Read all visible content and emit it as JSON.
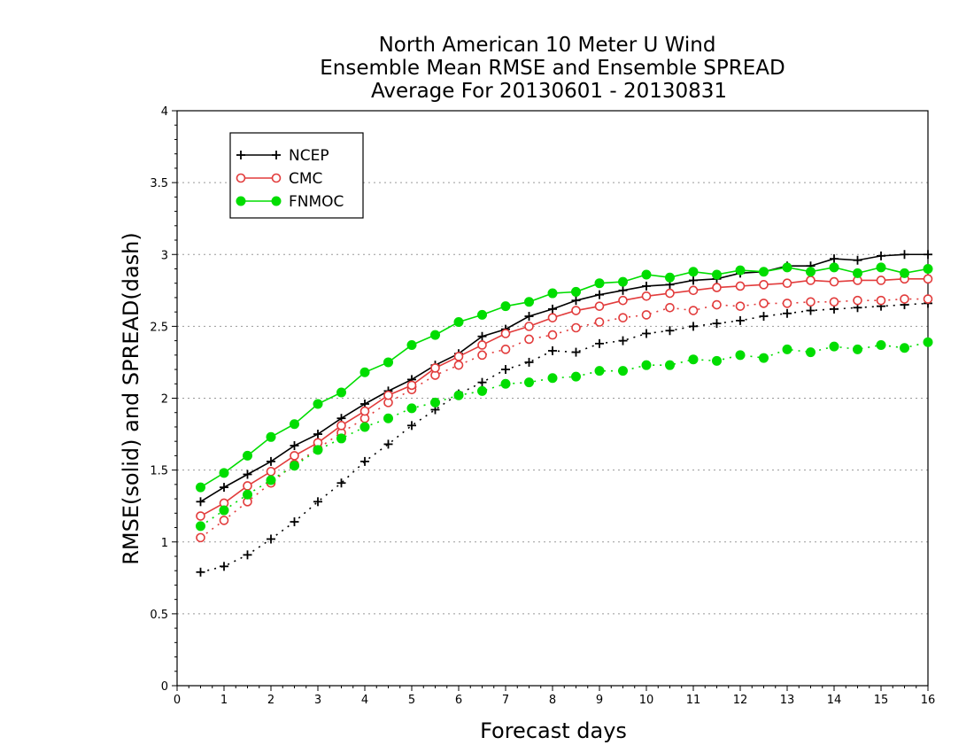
{
  "chart_data": {
    "type": "line",
    "title": [
      "North American 10 Meter U Wind",
      "Ensemble Mean RMSE and Ensemble SPREAD",
      "Average For 20130601 - 20130831"
    ],
    "xlabel": "Forecast days",
    "ylabel": "RMSE(solid) and SPREAD(dash)",
    "xlim": [
      0,
      16
    ],
    "ylim": [
      0,
      4
    ],
    "xticks": [
      "0",
      "1",
      "2",
      "3",
      "4",
      "5",
      "6",
      "7",
      "8",
      "9",
      "10",
      "11",
      "12",
      "13",
      "14",
      "15",
      "16"
    ],
    "yticks": [
      "0",
      "0.5",
      "1",
      "1.5",
      "2",
      "2.5",
      "3",
      "3.5",
      "4"
    ],
    "grid": "horizontal dotted",
    "legend_position": "top-left",
    "x": [
      0.5,
      1,
      1.5,
      2,
      2.5,
      3,
      3.5,
      4,
      4.5,
      5,
      5.5,
      6,
      6.5,
      7,
      7.5,
      8,
      8.5,
      9,
      9.5,
      10,
      10.5,
      11,
      11.5,
      12,
      12.5,
      13,
      13.5,
      14,
      14.5,
      15,
      15.5,
      16
    ],
    "series": [
      {
        "name": "NCEP",
        "color": "#000000",
        "marker": "plus",
        "rmse": [
          1.28,
          1.38,
          1.47,
          1.56,
          1.67,
          1.75,
          1.86,
          1.96,
          2.05,
          2.13,
          2.23,
          2.31,
          2.43,
          2.48,
          2.57,
          2.62,
          2.68,
          2.72,
          2.75,
          2.78,
          2.79,
          2.82,
          2.83,
          2.87,
          2.88,
          2.92,
          2.92,
          2.97,
          2.96,
          2.99,
          3.0,
          3.0
        ],
        "spread": [
          0.79,
          0.83,
          0.91,
          1.02,
          1.14,
          1.28,
          1.41,
          1.56,
          1.68,
          1.81,
          1.92,
          2.03,
          2.11,
          2.2,
          2.25,
          2.33,
          2.32,
          2.38,
          2.4,
          2.45,
          2.47,
          2.5,
          2.52,
          2.54,
          2.57,
          2.59,
          2.61,
          2.62,
          2.63,
          2.64,
          2.65,
          2.66
        ]
      },
      {
        "name": "CMC",
        "color": "#e23c3c",
        "marker": "open-circle",
        "rmse": [
          1.18,
          1.27,
          1.39,
          1.49,
          1.6,
          1.69,
          1.81,
          1.91,
          2.02,
          2.09,
          2.21,
          2.29,
          2.37,
          2.45,
          2.5,
          2.56,
          2.61,
          2.64,
          2.68,
          2.71,
          2.73,
          2.75,
          2.77,
          2.78,
          2.79,
          2.8,
          2.82,
          2.81,
          2.82,
          2.82,
          2.83,
          2.83
        ],
        "spread": [
          1.03,
          1.15,
          1.28,
          1.41,
          1.54,
          1.65,
          1.76,
          1.86,
          1.97,
          2.06,
          2.16,
          2.23,
          2.3,
          2.34,
          2.41,
          2.44,
          2.49,
          2.53,
          2.56,
          2.58,
          2.63,
          2.61,
          2.65,
          2.64,
          2.66,
          2.66,
          2.67,
          2.67,
          2.68,
          2.68,
          2.69,
          2.69
        ]
      },
      {
        "name": "FNMOC",
        "color": "#00dd00",
        "marker": "filled-circle",
        "rmse": [
          1.38,
          1.48,
          1.6,
          1.73,
          1.82,
          1.96,
          2.04,
          2.18,
          2.25,
          2.37,
          2.44,
          2.53,
          2.58,
          2.64,
          2.67,
          2.73,
          2.74,
          2.8,
          2.81,
          2.86,
          2.84,
          2.88,
          2.86,
          2.89,
          2.88,
          2.91,
          2.88,
          2.91,
          2.87,
          2.91,
          2.87,
          2.9
        ],
        "spread": [
          1.11,
          1.22,
          1.33,
          1.43,
          1.53,
          1.64,
          1.72,
          1.8,
          1.86,
          1.93,
          1.97,
          2.02,
          2.05,
          2.1,
          2.11,
          2.14,
          2.15,
          2.19,
          2.19,
          2.23,
          2.23,
          2.27,
          2.26,
          2.3,
          2.28,
          2.34,
          2.32,
          2.36,
          2.34,
          2.37,
          2.35,
          2.39
        ]
      }
    ]
  }
}
